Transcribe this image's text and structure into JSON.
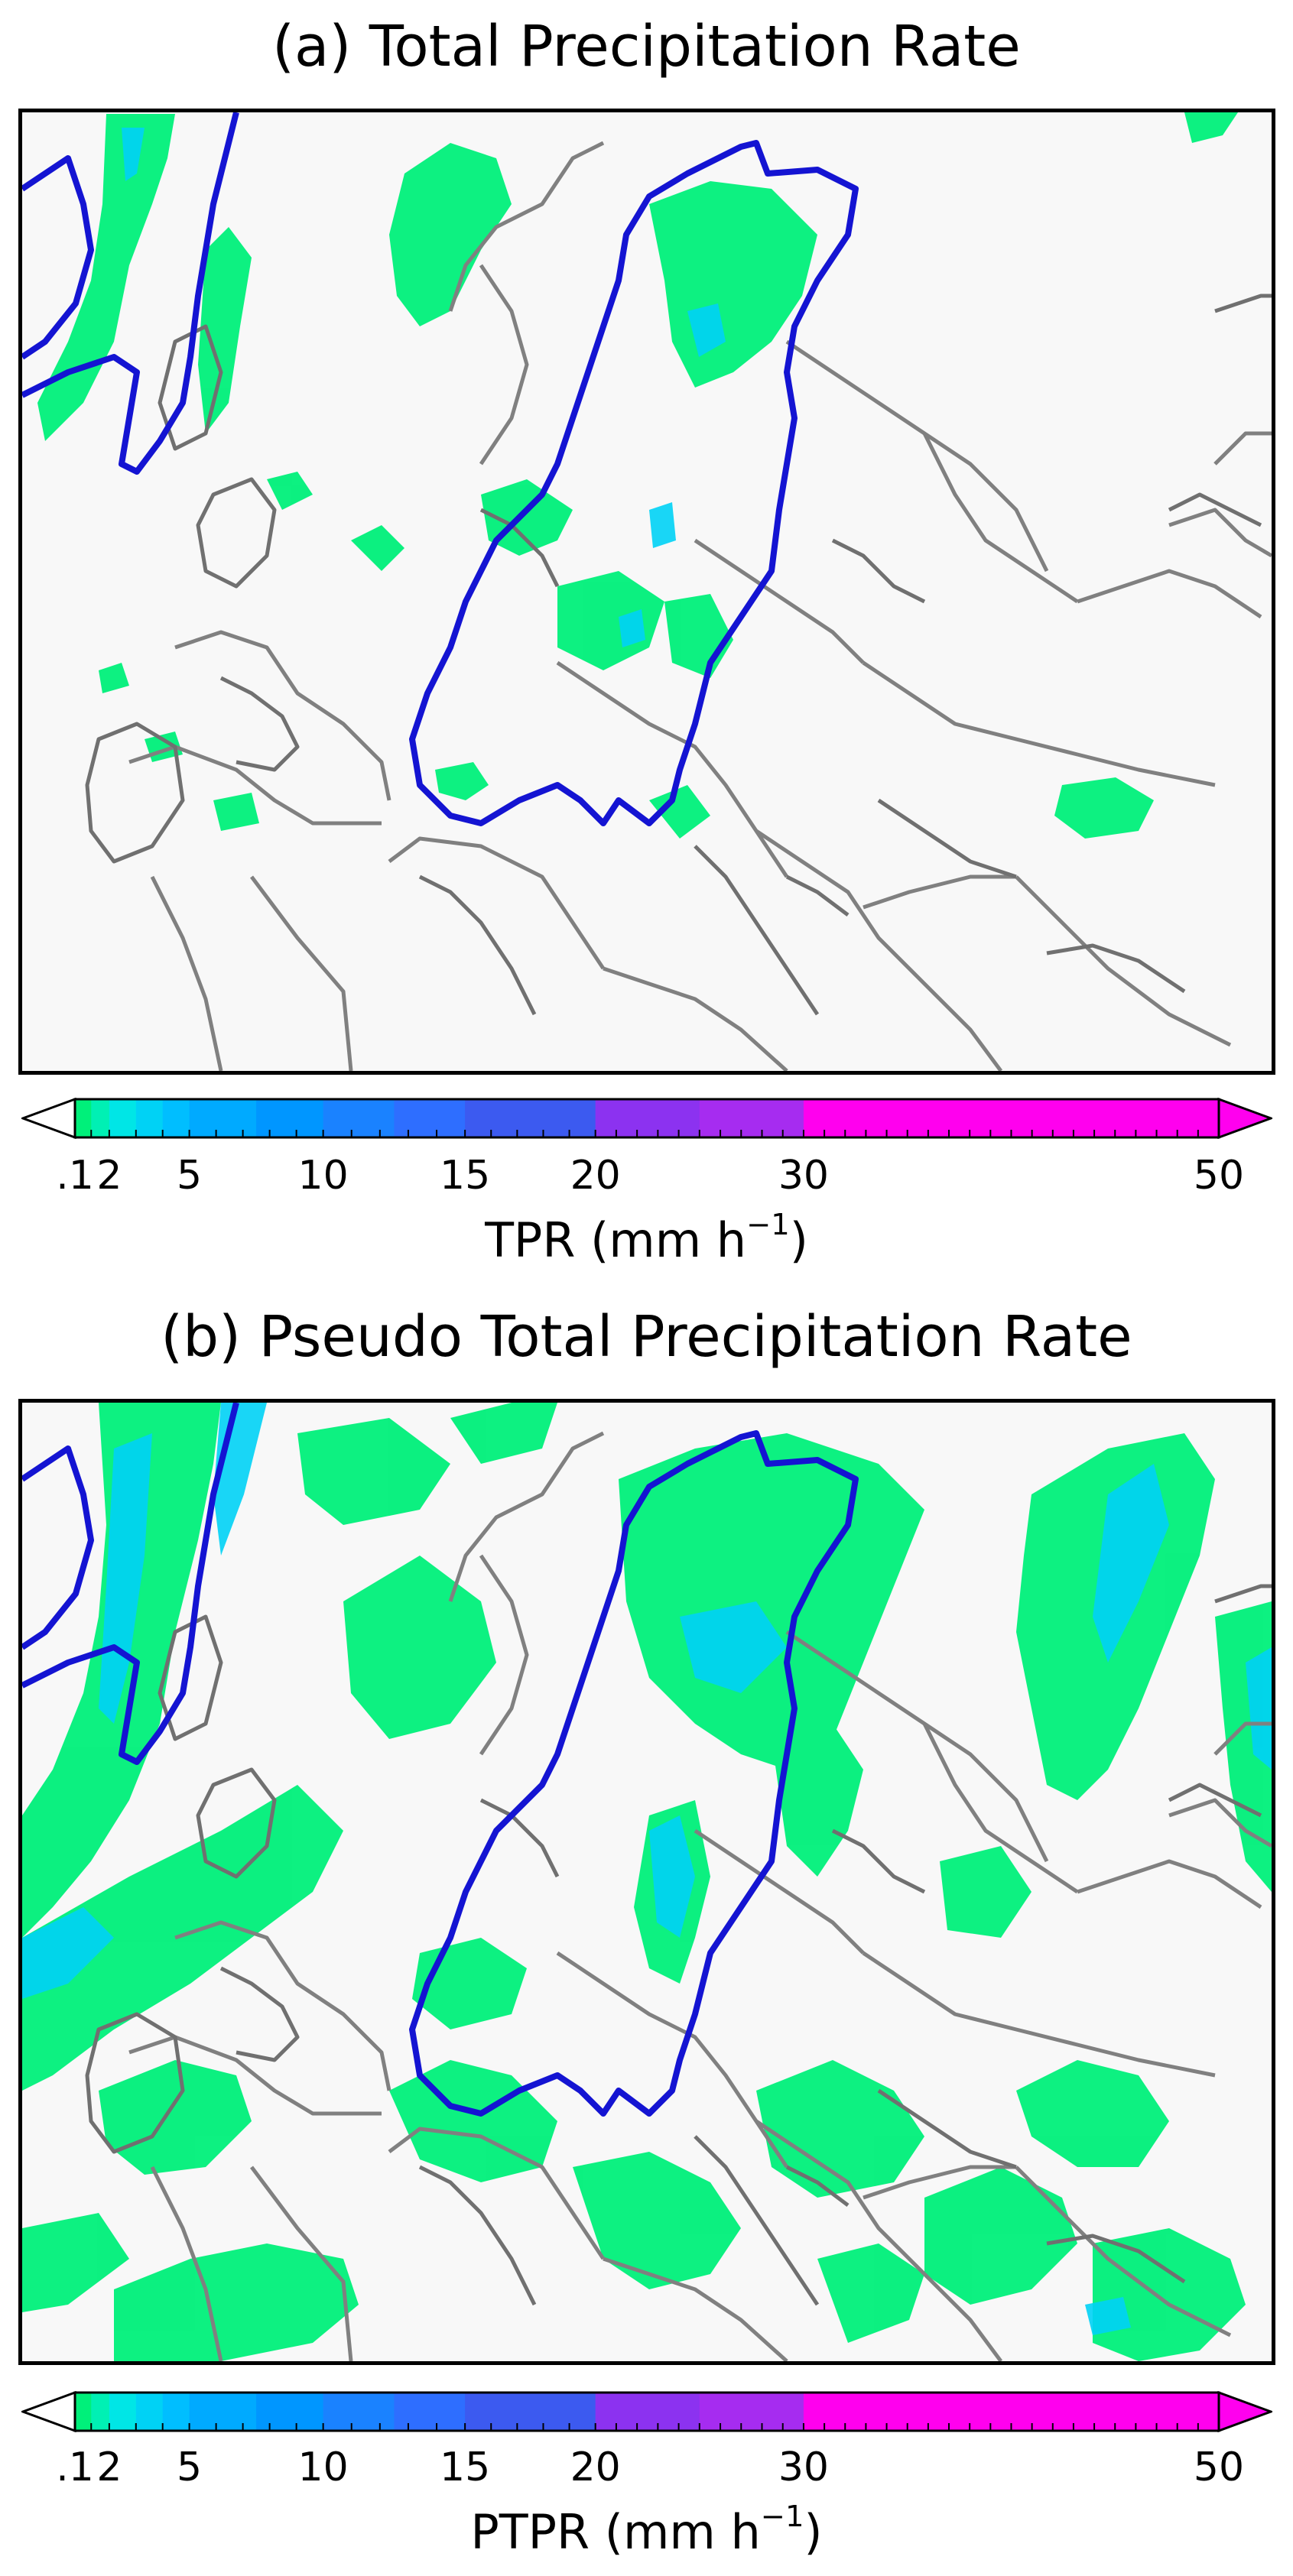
{
  "panels": [
    {
      "title": "(a) Total Precipitation Rate",
      "colorbar_label_main": "TPR (mm h",
      "colorbar_label_exp": "−1",
      "colorbar_label_close": ")"
    },
    {
      "title": "(b) Pseudo Total Precipitation Rate",
      "colorbar_label_main": "PTPR (mm h",
      "colorbar_label_exp": "−1",
      "colorbar_label_close": ")"
    }
  ],
  "colorbar": {
    "tick_labels": [
      ".1",
      "2",
      "5",
      "10",
      "15",
      "20",
      "30",
      "50"
    ],
    "tick_values": [
      0.1,
      2,
      5,
      10,
      15,
      20,
      30,
      50
    ],
    "bins": [
      {
        "from": 0.1,
        "to": 1,
        "color": "#00f07a"
      },
      {
        "from": 1,
        "to": 2,
        "color": "#00f0b4"
      },
      {
        "from": 2,
        "to": 3,
        "color": "#00e6e6"
      },
      {
        "from": 3,
        "to": 4,
        "color": "#00d2f5"
      },
      {
        "from": 4,
        "to": 5,
        "color": "#00beff"
      },
      {
        "from": 5,
        "to": 7.5,
        "color": "#00aaff"
      },
      {
        "from": 7.5,
        "to": 10,
        "color": "#0096ff"
      },
      {
        "from": 10,
        "to": 12.5,
        "color": "#1a82ff"
      },
      {
        "from": 12.5,
        "to": 15,
        "color": "#2e6eff"
      },
      {
        "from": 15,
        "to": 20,
        "color": "#3c5af0"
      },
      {
        "from": 20,
        "to": 25,
        "color": "#8c32f0"
      },
      {
        "from": 25,
        "to": 30,
        "color": "#a62cf0"
      },
      {
        "from": 30,
        "to": 50,
        "color": "#ff00ee"
      }
    ],
    "under_color": "#ffffff",
    "over_color": "#ff00ee"
  },
  "colors": {
    "map_background": "#f8f8f8",
    "border_line": "#808080",
    "domain_outline": "#1414d2",
    "light_precip": "#00f07a",
    "moderate_precip": "#00d2f5"
  }
}
